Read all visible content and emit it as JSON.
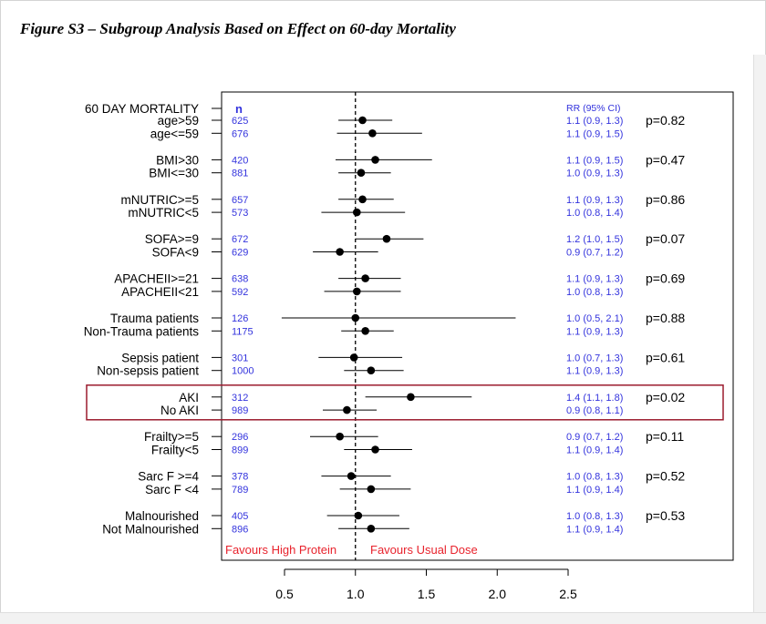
{
  "figure_title": "Figure S3 – Subgroup Analysis Based on Effect on 60-day Mortality",
  "colors": {
    "n": "#3333dd",
    "rr": "#3333dd",
    "favours": "#e8222c",
    "highlight": "#9b1c2e",
    "ci": "#000000",
    "axis": "#000000"
  },
  "chart_data": {
    "type": "forest",
    "title": "",
    "header_label": "60 DAY MORTALITY",
    "n_header": "n",
    "rr_header": "RR (95% CI)",
    "reference_line": 1.0,
    "xlim": [
      0.3,
      2.8
    ],
    "xticks": [
      0.5,
      1.0,
      1.5,
      2.0,
      2.5
    ],
    "xtick_labels": [
      "0.5",
      "1.0",
      "1.5",
      "2.0",
      "2.5"
    ],
    "favours_left": "Favours High Protein",
    "favours_right": "Favours Usual Dose",
    "highlighted_group": 7,
    "groups": [
      {
        "p": "p=0.82",
        "rows": [
          {
            "label": "age>59",
            "n": "625",
            "rr_text": "1.1 (0.9, 1.3)",
            "est": 1.05,
            "lo": 0.88,
            "hi": 1.26
          },
          {
            "label": "age<=59",
            "n": "676",
            "rr_text": "1.1 (0.9, 1.5)",
            "est": 1.12,
            "lo": 0.87,
            "hi": 1.47
          }
        ]
      },
      {
        "p": "p=0.47",
        "rows": [
          {
            "label": "BMI>30",
            "n": "420",
            "rr_text": "1.1 (0.9, 1.5)",
            "est": 1.14,
            "lo": 0.86,
            "hi": 1.54
          },
          {
            "label": "BMI<=30",
            "n": "881",
            "rr_text": "1.0 (0.9, 1.3)",
            "est": 1.04,
            "lo": 0.88,
            "hi": 1.25
          }
        ]
      },
      {
        "p": "p=0.86",
        "rows": [
          {
            "label": "mNUTRIC>=5",
            "n": "657",
            "rr_text": "1.1 (0.9, 1.3)",
            "est": 1.05,
            "lo": 0.88,
            "hi": 1.27
          },
          {
            "label": "mNUTRIC<5",
            "n": "573",
            "rr_text": "1.0 (0.8, 1.4)",
            "est": 1.01,
            "lo": 0.76,
            "hi": 1.35
          }
        ]
      },
      {
        "p": "p=0.07",
        "rows": [
          {
            "label": "SOFA>=9",
            "n": "672",
            "rr_text": "1.2 (1.0, 1.5)",
            "est": 1.22,
            "lo": 1.0,
            "hi": 1.48
          },
          {
            "label": "SOFA<9",
            "n": "629",
            "rr_text": "0.9 (0.7, 1.2)",
            "est": 0.89,
            "lo": 0.7,
            "hi": 1.16
          }
        ]
      },
      {
        "p": "p=0.69",
        "rows": [
          {
            "label": "APACHEII>=21",
            "n": "638",
            "rr_text": "1.1 (0.9, 1.3)",
            "est": 1.07,
            "lo": 0.88,
            "hi": 1.32
          },
          {
            "label": "APACHEII<21",
            "n": "592",
            "rr_text": "1.0 (0.8, 1.3)",
            "est": 1.01,
            "lo": 0.78,
            "hi": 1.32
          }
        ]
      },
      {
        "p": "p=0.88",
        "rows": [
          {
            "label": "Trauma patients",
            "n": "126",
            "rr_text": "1.0 (0.5, 2.1)",
            "est": 1.0,
            "lo": 0.48,
            "hi": 2.13
          },
          {
            "label": "Non-Trauma patients",
            "n": "1175",
            "rr_text": "1.1 (0.9, 1.3)",
            "est": 1.07,
            "lo": 0.9,
            "hi": 1.27
          }
        ]
      },
      {
        "p": "p=0.61",
        "rows": [
          {
            "label": "Sepsis patient",
            "n": "301",
            "rr_text": "1.0 (0.7, 1.3)",
            "est": 0.99,
            "lo": 0.74,
            "hi": 1.33
          },
          {
            "label": "Non-sepsis patient",
            "n": "1000",
            "rr_text": "1.1 (0.9, 1.3)",
            "est": 1.11,
            "lo": 0.92,
            "hi": 1.34
          }
        ]
      },
      {
        "p": "p=0.02",
        "rows": [
          {
            "label": "AKI",
            "n": "312",
            "rr_text": "1.4 (1.1, 1.8)",
            "est": 1.39,
            "lo": 1.07,
            "hi": 1.82
          },
          {
            "label": "No AKI",
            "n": "989",
            "rr_text": "0.9 (0.8, 1.1)",
            "est": 0.94,
            "lo": 0.77,
            "hi": 1.15
          }
        ]
      },
      {
        "p": "p=0.11",
        "rows": [
          {
            "label": "Frailty>=5",
            "n": "296",
            "rr_text": "0.9 (0.7, 1.2)",
            "est": 0.89,
            "lo": 0.68,
            "hi": 1.16
          },
          {
            "label": "Frailty<5",
            "n": "899",
            "rr_text": "1.1 (0.9, 1.4)",
            "est": 1.14,
            "lo": 0.92,
            "hi": 1.4
          }
        ]
      },
      {
        "p": "p=0.52",
        "rows": [
          {
            "label": "Sarc F >=4",
            "n": "378",
            "rr_text": "1.0 (0.8, 1.3)",
            "est": 0.97,
            "lo": 0.76,
            "hi": 1.25
          },
          {
            "label": "Sarc F <4",
            "n": "789",
            "rr_text": "1.1 (0.9, 1.4)",
            "est": 1.11,
            "lo": 0.89,
            "hi": 1.39
          }
        ]
      },
      {
        "p": "p=0.53",
        "rows": [
          {
            "label": "Malnourished",
            "n": "405",
            "rr_text": "1.0 (0.8, 1.3)",
            "est": 1.02,
            "lo": 0.8,
            "hi": 1.31
          },
          {
            "label": "Not Malnourished",
            "n": "896",
            "rr_text": "1.1 (0.9, 1.4)",
            "est": 1.11,
            "lo": 0.88,
            "hi": 1.38
          }
        ]
      }
    ]
  }
}
